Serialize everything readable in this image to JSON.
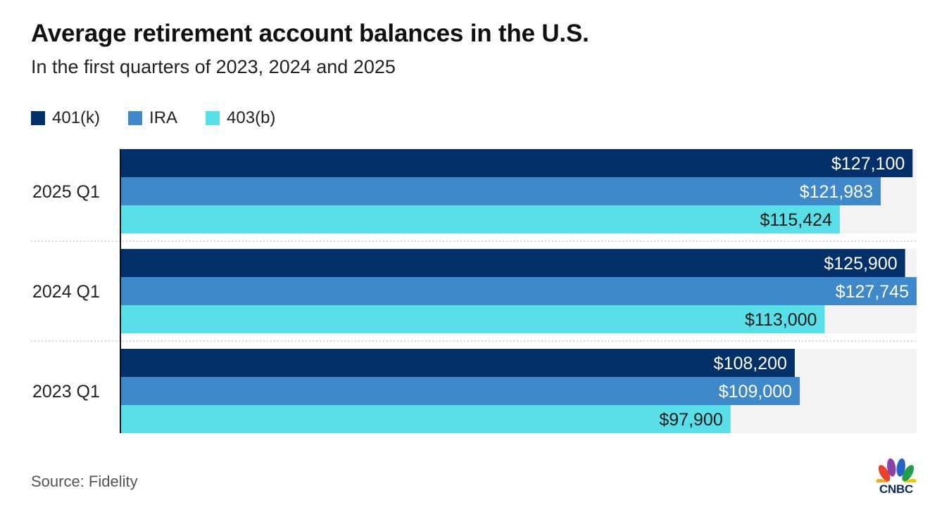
{
  "header": {
    "title": "Average retirement account balances in the U.S.",
    "subtitle": "In the first quarters of 2023, 2024 and 2025"
  },
  "legend": [
    {
      "label": "401(k)",
      "color": "#04306a"
    },
    {
      "label": "IRA",
      "color": "#3f88c9"
    },
    {
      "label": "403(b)",
      "color": "#58dfe8"
    }
  ],
  "chart_data": {
    "type": "bar",
    "orientation": "horizontal",
    "title": "Average retirement account balances in the U.S.",
    "subtitle": "In the first quarters of 2023, 2024 and 2025",
    "categories": [
      "2025 Q1",
      "2024 Q1",
      "2023 Q1"
    ],
    "series": [
      {
        "name": "401(k)",
        "color": "#04306a",
        "values": [
          127100,
          125900,
          108200
        ],
        "labels": [
          "$127,100",
          "$125,900",
          "$108,200"
        ],
        "label_color": "#ffffff"
      },
      {
        "name": "IRA",
        "color": "#3f88c9",
        "values": [
          121983,
          127745,
          109000
        ],
        "labels": [
          "$121,983",
          "$127,745",
          "$109,000"
        ],
        "label_color": "#ffffff"
      },
      {
        "name": "403(b)",
        "color": "#58dfe8",
        "values": [
          115424,
          113000,
          97900
        ],
        "labels": [
          "$115,424",
          "$113,000",
          "$97,900"
        ],
        "label_color": "#1a1a1a"
      }
    ],
    "xlim": [
      0,
      127745
    ],
    "xlabel": "",
    "ylabel": "",
    "grid": false,
    "legend_position": "top-left"
  },
  "footer": {
    "source": "Source: Fidelity",
    "logo_text": "CNBC"
  }
}
